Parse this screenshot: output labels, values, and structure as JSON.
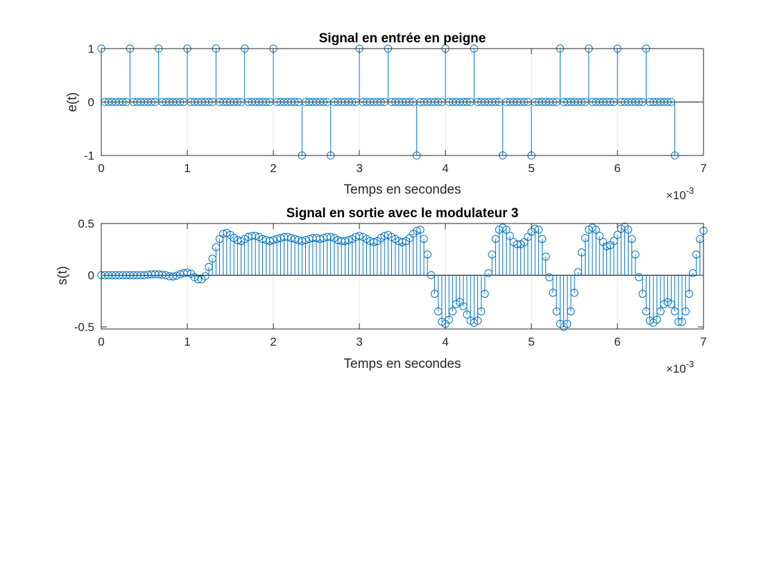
{
  "figure": {
    "background": "#ffffff"
  },
  "style": {
    "stem_color": "#0072BD",
    "axis_color": "#262626",
    "grid_color": "#e6e6e6",
    "zero_line_color": "#000000"
  },
  "chart_data": [
    {
      "type": "stem",
      "title": "Signal en entrée en peigne",
      "xlabel": "Temps en secondes",
      "ylabel": "e(t)",
      "x_exponent_label": "×10",
      "x_exponent": "-3",
      "xlim": [
        0,
        7
      ],
      "ylim": [
        -1,
        1
      ],
      "xticks": [
        0,
        1,
        2,
        3,
        4,
        5,
        6,
        7
      ],
      "yticks": [
        -1,
        0,
        1
      ],
      "ytick_labels": [
        "-1",
        "0",
        "1"
      ],
      "x_unit": "×10^-3 s",
      "grid": "vertical",
      "sample_count": 161,
      "x_start": 0,
      "x_step": 0.04167,
      "pulse_period_samples": 8,
      "symbols": [
        1,
        1,
        1,
        1,
        1,
        1,
        1,
        -1,
        -1,
        1,
        1,
        -1,
        1,
        1,
        -1,
        -1,
        1,
        1,
        1,
        1,
        -1
      ]
    },
    {
      "type": "stem",
      "title": "Signal en sortie avec le modulateur 3",
      "xlabel": "Temps en secondes",
      "ylabel": "s(t)",
      "x_exponent_label": "×10",
      "x_exponent": "-3",
      "xlim": [
        0,
        7
      ],
      "ylim": [
        -0.52,
        0.5
      ],
      "xticks": [
        0,
        1,
        2,
        3,
        4,
        5,
        6,
        7
      ],
      "yticks": [
        -0.5,
        0,
        0.5
      ],
      "ytick_labels": [
        "-0.5",
        "0",
        "0.5"
      ],
      "grid": "vertical",
      "x_start": 0,
      "x_step": 0.04167,
      "values": [
        0,
        0,
        0,
        0,
        0,
        0,
        0,
        0,
        0,
        0,
        0,
        0,
        0,
        0.005,
        0.008,
        0.01,
        0.008,
        0.005,
        0,
        -0.01,
        -0.012,
        -0.005,
        0.01,
        0.02,
        0.025,
        0.015,
        -0.02,
        -0.04,
        -0.04,
        -0.01,
        0.08,
        0.16,
        0.27,
        0.35,
        0.4,
        0.41,
        0.39,
        0.36,
        0.34,
        0.33,
        0.35,
        0.37,
        0.38,
        0.38,
        0.37,
        0.35,
        0.34,
        0.33,
        0.34,
        0.35,
        0.36,
        0.37,
        0.37,
        0.36,
        0.35,
        0.34,
        0.33,
        0.34,
        0.35,
        0.36,
        0.36,
        0.35,
        0.36,
        0.37,
        0.37,
        0.36,
        0.34,
        0.33,
        0.33,
        0.34,
        0.35,
        0.37,
        0.38,
        0.37,
        0.35,
        0.33,
        0.32,
        0.33,
        0.36,
        0.38,
        0.39,
        0.37,
        0.35,
        0.33,
        0.32,
        0.33,
        0.36,
        0.4,
        0.43,
        0.44,
        0.35,
        0.2,
        0,
        -0.18,
        -0.35,
        -0.45,
        -0.47,
        -0.43,
        -0.35,
        -0.28,
        -0.26,
        -0.3,
        -0.38,
        -0.44,
        -0.46,
        -0.44,
        -0.35,
        -0.18,
        0.02,
        0.2,
        0.35,
        0.44,
        0.46,
        0.44,
        0.38,
        0.32,
        0.3,
        0.3,
        0.32,
        0.37,
        0.42,
        0.45,
        0.44,
        0.35,
        0.18,
        -0.02,
        -0.17,
        -0.35,
        -0.47,
        -0.5,
        -0.47,
        -0.35,
        -0.17,
        0.03,
        0.22,
        0.36,
        0.44,
        0.46,
        0.44,
        0.38,
        0.32,
        0.28,
        0.29,
        0.33,
        0.39,
        0.45,
        0.47,
        0.44,
        0.35,
        0.2,
        -0.02,
        -0.18,
        -0.35,
        -0.44,
        -0.46,
        -0.43,
        -0.35,
        -0.28,
        -0.26,
        -0.28,
        -0.35,
        -0.45,
        -0.45,
        -0.35,
        -0.18,
        0.02,
        0.2,
        0.35,
        0.43
      ]
    }
  ]
}
